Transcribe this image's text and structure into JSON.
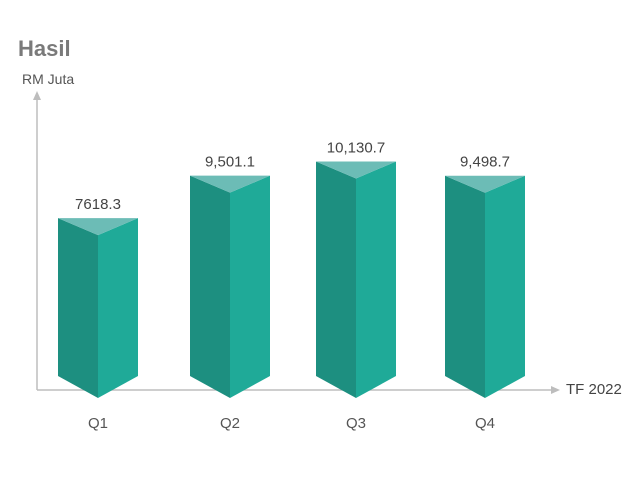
{
  "chart_data": {
    "type": "bar",
    "title": "Hasil",
    "ylabel": "RM Juta",
    "xlabel": "TF 2022",
    "categories": [
      "Q1",
      "Q2",
      "Q3",
      "Q4"
    ],
    "values": [
      7618.3,
      9501.1,
      10130.7,
      9498.7
    ],
    "value_labels": [
      "7618.3",
      "9,501.1",
      "10,130.7",
      "9,498.7"
    ],
    "ylim": [
      0,
      12500
    ],
    "grid": false,
    "legend": "none"
  },
  "colors": {
    "bar_front_left": "#1d8f80",
    "bar_front_right": "#1faa98",
    "bar_top": "#6cbcb6",
    "axis": "#bdbdbd"
  }
}
